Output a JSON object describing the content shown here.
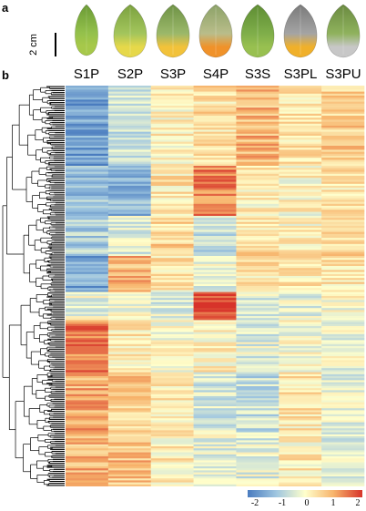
{
  "figure": {
    "panel_a_label": "a",
    "panel_b_label": "b",
    "scale_bar_label": "2 cm"
  },
  "samples": [
    {
      "label": "S1P",
      "petal": {
        "body": "#93c04b",
        "base": "#a6c84a",
        "tip": "#6a9a35"
      }
    },
    {
      "label": "S2P",
      "petal": {
        "body": "#a3c55c",
        "base": "#e6d84a",
        "tip": "#7ba13f"
      }
    },
    {
      "label": "S3P",
      "petal": {
        "body": "#9bb86a",
        "base": "#f2c23a",
        "tip": "#6e9245"
      }
    },
    {
      "label": "S4P",
      "petal": {
        "body": "#b9bd8a",
        "base": "#f0922a",
        "tip": "#8ca268"
      }
    },
    {
      "label": "S3S",
      "petal": {
        "body": "#7fae4a",
        "base": "#98c050",
        "tip": "#5e8d33"
      }
    },
    {
      "label": "S3PL",
      "petal": {
        "body": "#a4a4a4",
        "base": "#f0b02a",
        "tip": "#7a7a7a"
      }
    },
    {
      "label": "S3PU",
      "petal": {
        "body": "#8fb25d",
        "base": "#c7c7c7",
        "tip": "#6a8a40"
      }
    }
  ],
  "chart_data": {
    "type": "heatmap",
    "columns": [
      "S1P",
      "S2P",
      "S3P",
      "S4P",
      "S3S",
      "S3PL",
      "S3PU"
    ],
    "color_scale": {
      "min": -2,
      "max": 2,
      "stops": [
        "#4a7cbf",
        "#9fc6e0",
        "#ffffcc",
        "#f7b36b",
        "#d7332a"
      ]
    },
    "legend_ticks": [
      "-2",
      "-1",
      "0",
      "1",
      "2"
    ],
    "row_clusters": [
      {
        "rows": 40,
        "values": [
          -1.5,
          -0.6,
          0.2,
          0.4,
          0.9,
          0.3,
          0.6
        ]
      },
      {
        "rows": 25,
        "values": [
          -1.0,
          -1.2,
          0.3,
          1.4,
          0.2,
          0.1,
          0.3
        ]
      },
      {
        "rows": 20,
        "values": [
          -0.8,
          -0.3,
          0.5,
          -0.7,
          0.4,
          0.2,
          0.5
        ]
      },
      {
        "rows": 18,
        "values": [
          -1.4,
          0.9,
          0.3,
          -0.2,
          0.3,
          0.3,
          0.4
        ]
      },
      {
        "rows": 14,
        "values": [
          -0.2,
          0.0,
          -0.3,
          1.9,
          -0.3,
          -0.2,
          0.0
        ]
      },
      {
        "rows": 26,
        "values": [
          1.4,
          0.3,
          -0.1,
          0.2,
          -0.3,
          -0.1,
          -0.2
        ]
      },
      {
        "rows": 30,
        "values": [
          1.0,
          0.7,
          0.3,
          -0.4,
          -0.6,
          0.3,
          -0.3
        ]
      },
      {
        "rows": 27,
        "values": [
          0.9,
          0.8,
          0.2,
          -0.2,
          -0.3,
          0.2,
          -0.4
        ]
      }
    ]
  }
}
